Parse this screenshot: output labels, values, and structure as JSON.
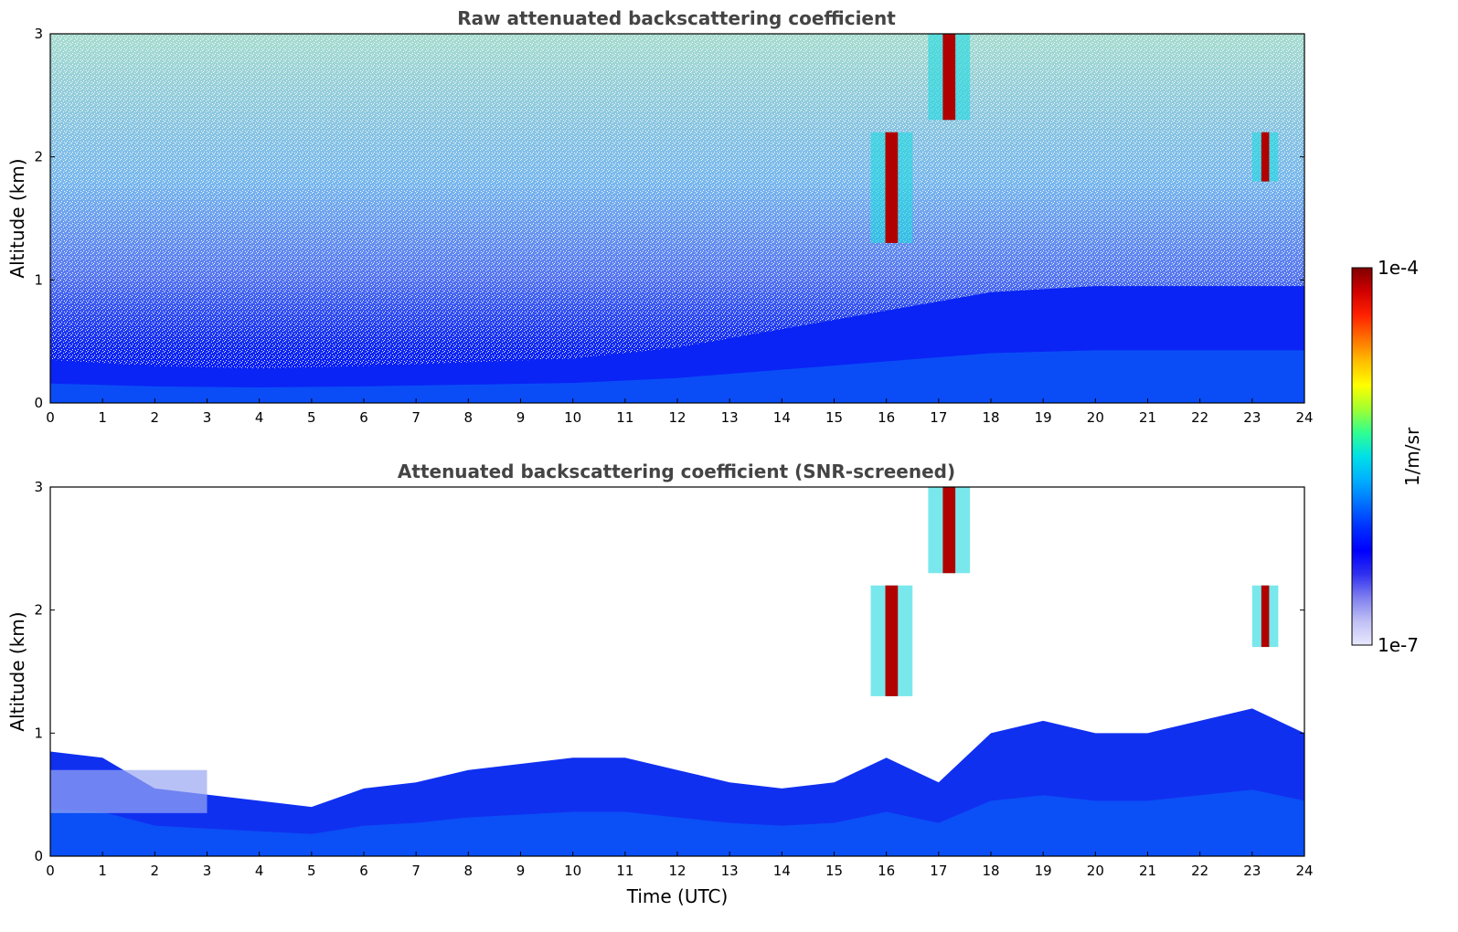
{
  "chart_data": [
    {
      "type": "heatmap",
      "title": "Raw attenuated backscattering coefficient",
      "xlabel": "",
      "ylabel": "Altitude (km)",
      "xlim": [
        0,
        24
      ],
      "ylim": [
        0,
        3
      ],
      "x_ticks": [
        "0",
        "1",
        "2",
        "3",
        "4",
        "5",
        "6",
        "7",
        "8",
        "9",
        "10",
        "11",
        "12",
        "13",
        "14",
        "15",
        "16",
        "17",
        "18",
        "19",
        "20",
        "21",
        "22",
        "23",
        "24"
      ],
      "y_ticks": [
        "0",
        "1",
        "2",
        "3"
      ],
      "features": [
        {
          "kind": "boundary_layer_top_km",
          "x": [
            0,
            2,
            4,
            6,
            8,
            10,
            12,
            14,
            16,
            18,
            20,
            22,
            24
          ],
          "y": [
            0.35,
            0.3,
            0.28,
            0.3,
            0.33,
            0.36,
            0.45,
            0.6,
            0.75,
            0.9,
            0.95,
            0.95,
            0.95
          ]
        },
        {
          "kind": "cloud",
          "x_range": [
            15.7,
            16.5
          ],
          "y_range": [
            1.3,
            2.2
          ]
        },
        {
          "kind": "cloud",
          "x_range": [
            16.8,
            17.6
          ],
          "y_range": [
            2.3,
            3.0
          ]
        },
        {
          "kind": "cloud",
          "x_range": [
            23.0,
            23.5
          ],
          "y_range": [
            1.8,
            2.2
          ]
        }
      ]
    },
    {
      "type": "heatmap",
      "title": "Attenuated backscattering coefficient (SNR-screened)",
      "xlabel": "Time (UTC)",
      "ylabel": "Altitude (km)",
      "xlim": [
        0,
        24
      ],
      "ylim": [
        0,
        3
      ],
      "x_ticks": [
        "0",
        "1",
        "2",
        "3",
        "4",
        "5",
        "6",
        "7",
        "8",
        "9",
        "10",
        "11",
        "12",
        "13",
        "14",
        "15",
        "16",
        "17",
        "18",
        "19",
        "20",
        "21",
        "22",
        "23",
        "24"
      ],
      "y_ticks": [
        "0",
        "1",
        "2",
        "3"
      ],
      "features": [
        {
          "kind": "valid_signal_top_km",
          "x": [
            0,
            1,
            2,
            3,
            4,
            5,
            6,
            7,
            8,
            9,
            10,
            11,
            12,
            13,
            14,
            15,
            16,
            17,
            18,
            19,
            20,
            21,
            22,
            23,
            24
          ],
          "y": [
            0.85,
            0.8,
            0.55,
            0.5,
            0.45,
            0.4,
            0.55,
            0.6,
            0.7,
            0.75,
            0.8,
            0.8,
            0.7,
            0.6,
            0.55,
            0.6,
            0.8,
            0.6,
            1.0,
            1.1,
            1.0,
            1.0,
            1.1,
            1.2,
            1.0
          ]
        },
        {
          "kind": "cloud",
          "x_range": [
            15.7,
            16.5
          ],
          "y_range": [
            1.3,
            2.2
          ]
        },
        {
          "kind": "cloud",
          "x_range": [
            16.8,
            17.6
          ],
          "y_range": [
            2.3,
            3.0
          ]
        },
        {
          "kind": "cloud",
          "x_range": [
            23.0,
            23.5
          ],
          "y_range": [
            1.7,
            2.2
          ]
        }
      ]
    }
  ],
  "colorbar": {
    "label": "1/m/sr",
    "max_label": "1e-4",
    "min_label": "1e-7",
    "range": [
      1e-07,
      0.0001
    ],
    "scale": "log",
    "colors": [
      "#e8e8ff",
      "#c0c0f5",
      "#8080f0",
      "#3030f0",
      "#0000ff",
      "#0030ff",
      "#0070ff",
      "#00b0ff",
      "#00e0e8",
      "#30ff90",
      "#a0ff30",
      "#ffff00",
      "#ffc000",
      "#ff7000",
      "#ff2000",
      "#d00000",
      "#800000"
    ]
  }
}
